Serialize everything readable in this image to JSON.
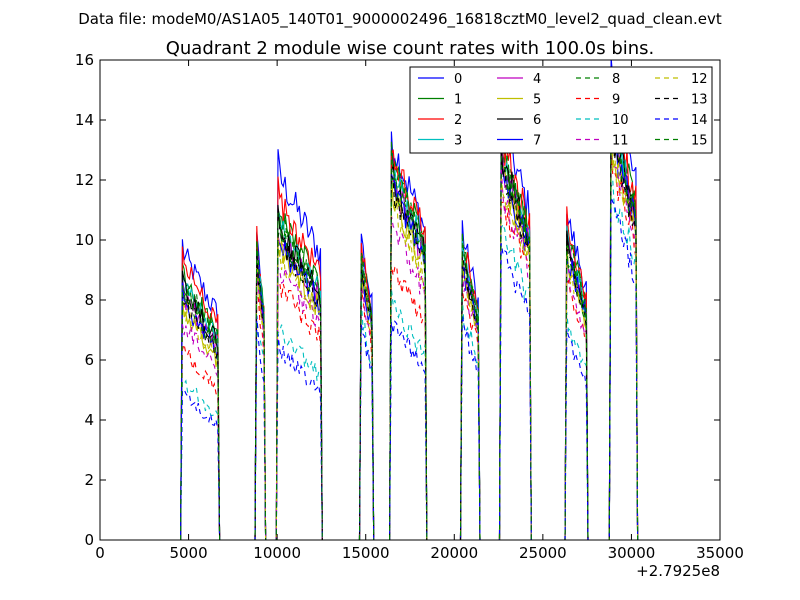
{
  "figure": {
    "suptitle": "Data file: modeM0/AS1A05_140T01_9000002496_16818cztM0_level2_quad_clean.evt"
  },
  "chart_data": {
    "type": "line",
    "title": "Quadrant 2 module wise count rates with 100.0s bins.",
    "xlabel": "",
    "ylabel": "",
    "xlim": [
      0,
      35000
    ],
    "ylim": [
      0,
      16
    ],
    "x_offset_label": "+2.7925e8",
    "x_ticks": [
      0,
      5000,
      10000,
      15000,
      20000,
      25000,
      30000,
      35000
    ],
    "y_ticks": [
      0,
      2,
      4,
      6,
      8,
      10,
      12,
      14,
      16
    ],
    "grid": false,
    "legend_position": "top-right",
    "legend_columns": 4,
    "segments": [
      {
        "start": 4650,
        "end": 6650
      },
      {
        "start": 8850,
        "end": 9250
      },
      {
        "start": 10050,
        "end": 12450
      },
      {
        "start": 14750,
        "end": 15350
      },
      {
        "start": 16450,
        "end": 18350
      },
      {
        "start": 20450,
        "end": 21350
      },
      {
        "start": 22650,
        "end": 24250
      },
      {
        "start": 26350,
        "end": 27450
      },
      {
        "start": 28850,
        "end": 30250
      }
    ],
    "series": [
      {
        "name": "0",
        "color": "#0000ff",
        "style": "solid",
        "levels": [
          9.6,
          10.0,
          12.2,
          10.0,
          13.3,
          10.2,
          14.0,
          10.8,
          15.2
        ]
      },
      {
        "name": "1",
        "color": "#008000",
        "style": "solid",
        "levels": [
          8.8,
          9.6,
          10.8,
          9.5,
          12.6,
          9.7,
          13.0,
          10.2,
          14.2
        ]
      },
      {
        "name": "2",
        "color": "#ff0000",
        "style": "solid",
        "levels": [
          9.3,
          9.8,
          11.3,
          9.8,
          12.9,
          9.9,
          13.4,
          10.4,
          14.5
        ]
      },
      {
        "name": "3",
        "color": "#00bfbf",
        "style": "solid",
        "levels": [
          8.5,
          9.4,
          10.5,
          9.3,
          12.3,
          9.4,
          12.7,
          9.9,
          13.8
        ]
      },
      {
        "name": "4",
        "color": "#bf00bf",
        "style": "solid",
        "levels": [
          8.2,
          9.2,
          10.2,
          9.1,
          12.0,
          9.2,
          12.5,
          9.7,
          13.6
        ]
      },
      {
        "name": "5",
        "color": "#bfbf00",
        "style": "solid",
        "levels": [
          7.6,
          8.9,
          9.8,
          8.8,
          11.6,
          8.9,
          12.2,
          9.4,
          13.2
        ]
      },
      {
        "name": "6",
        "color": "#000000",
        "style": "solid",
        "levels": [
          8.4,
          9.3,
          10.4,
          9.2,
          12.2,
          9.3,
          12.8,
          9.8,
          13.9
        ]
      },
      {
        "name": "7",
        "color": "#0000ff",
        "style": "solid",
        "levels": [
          8.0,
          9.1,
          10.0,
          9.0,
          11.9,
          9.1,
          12.4,
          9.6,
          13.5
        ]
      },
      {
        "name": "8",
        "color": "#008000",
        "style": "dashed",
        "levels": [
          8.6,
          9.5,
          10.6,
          9.4,
          12.4,
          9.5,
          12.9,
          10.0,
          14.0
        ]
      },
      {
        "name": "9",
        "color": "#ff0000",
        "style": "dashed",
        "levels": [
          6.4,
          8.2,
          8.6,
          8.1,
          9.2,
          8.2,
          11.3,
          8.6,
          12.6
        ]
      },
      {
        "name": "10",
        "color": "#00bfbf",
        "style": "dashed",
        "levels": [
          5.3,
          7.4,
          7.0,
          7.5,
          7.9,
          7.6,
          10.3,
          7.3,
          11.8
        ]
      },
      {
        "name": "11",
        "color": "#bf00bf",
        "style": "dashed",
        "levels": [
          7.2,
          8.6,
          9.1,
          8.5,
          10.5,
          8.6,
          11.6,
          8.9,
          12.8
        ]
      },
      {
        "name": "12",
        "color": "#bfbf00",
        "style": "dashed",
        "levels": [
          7.8,
          9.0,
          9.5,
          8.9,
          11.2,
          9.0,
          12.0,
          9.2,
          13.1
        ]
      },
      {
        "name": "13",
        "color": "#000000",
        "style": "dashed",
        "levels": [
          8.1,
          9.2,
          10.1,
          9.1,
          11.8,
          9.2,
          12.3,
          9.5,
          13.4
        ]
      },
      {
        "name": "14",
        "color": "#0000ff",
        "style": "dashed",
        "levels": [
          4.9,
          7.0,
          6.4,
          7.1,
          7.3,
          7.2,
          9.7,
          6.8,
          11.2
        ]
      },
      {
        "name": "15",
        "color": "#008000",
        "style": "dashed",
        "levels": [
          8.3,
          9.4,
          10.3,
          9.3,
          12.1,
          9.4,
          12.7,
          9.7,
          13.7
        ]
      }
    ]
  }
}
